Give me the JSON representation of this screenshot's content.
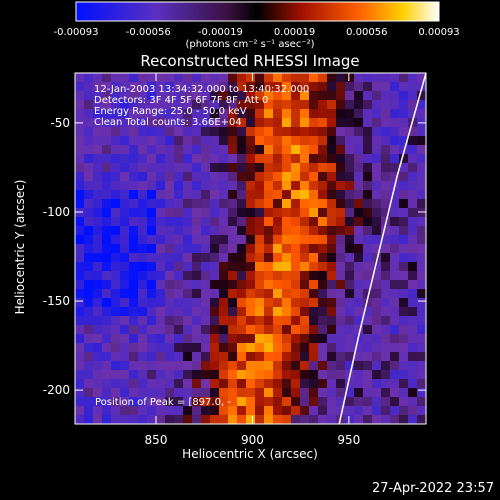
{
  "chart_data": {
    "type": "heatmap",
    "title": "Reconstructed RHESSI Image",
    "xlabel": "Heliocentric X (arcsec)",
    "ylabel": "Heliocentric Y (arcsec)",
    "xlim": [
      808,
      990
    ],
    "ylim": [
      -219,
      -22
    ],
    "x_ticks": [
      850,
      900,
      950
    ],
    "y_ticks": [
      -200,
      -150,
      -100,
      -50
    ],
    "colorbar": {
      "ticks": [
        "-0.00093",
        "-0.00056",
        "-0.00019",
        "0.00019",
        "0.00056",
        "0.00093"
      ],
      "range": [
        -0.00093,
        0.00093
      ],
      "unit_label": "(photons cm⁻² s⁻¹ asec⁻²)"
    },
    "annotations": [
      "12-Jan-2003 13:34:32.000 to 13:40:32.000",
      "Detectors: 3F 4F 5F 6F 7F 8F, Att 0",
      "Energy Range: 25.0 - 50.0 keV",
      "Clean     Total counts: 3.66E+04"
    ],
    "peak_label": "Position of Peak = [897.0, -",
    "limb_curve": [
      [
        990,
        -22
      ],
      [
        975,
        -80
      ],
      [
        965,
        -125
      ],
      [
        955,
        -170
      ],
      [
        945,
        -219
      ]
    ],
    "source_ridge": [
      [
        918,
        -55
      ],
      [
        925,
        -100
      ],
      [
        915,
        -140
      ],
      [
        905,
        -180
      ],
      [
        898,
        -215
      ]
    ]
  },
  "footer_date": "27-Apr-2022 23:57"
}
